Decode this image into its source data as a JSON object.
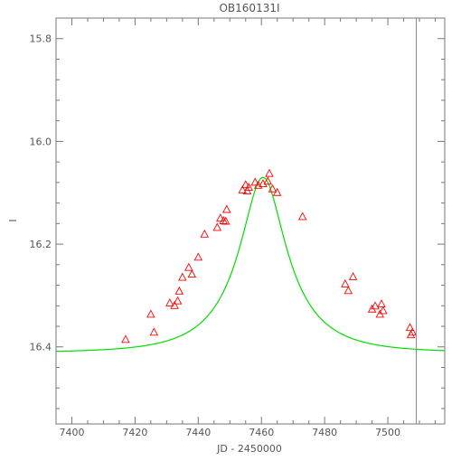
{
  "chart_data": {
    "type": "scatter",
    "title": "OB160131I",
    "xlabel": "JD - 2450000",
    "ylabel": "I",
    "xlim": [
      7395,
      7518
    ],
    "ylim": [
      16.55,
      15.76
    ],
    "y_inverted": true,
    "grid": false,
    "x_ticks": [
      7400,
      7420,
      7440,
      7460,
      7480,
      7500
    ],
    "x_tick_labels": [
      "7400",
      "7420",
      "7440",
      "7460",
      "7480",
      "7500"
    ],
    "y_ticks": [
      15.8,
      16.0,
      16.2,
      16.4
    ],
    "y_tick_labels": [
      "15.8",
      "16.0",
      "16.2",
      "16.4"
    ],
    "vertical_line_x": 7509,
    "series": [
      {
        "marker": "triangle",
        "color": "#ff0000",
        "points": [
          {
            "x": 7417,
            "y": 16.386
          },
          {
            "x": 7425,
            "y": 16.337
          },
          {
            "x": 7426,
            "y": 16.372
          },
          {
            "x": 7431,
            "y": 16.315
          },
          {
            "x": 7432.5,
            "y": 16.32
          },
          {
            "x": 7433.5,
            "y": 16.311
          },
          {
            "x": 7434,
            "y": 16.292
          },
          {
            "x": 7435,
            "y": 16.265
          },
          {
            "x": 7437,
            "y": 16.246
          },
          {
            "x": 7438,
            "y": 16.259
          },
          {
            "x": 7440,
            "y": 16.226
          },
          {
            "x": 7442,
            "y": 16.181
          },
          {
            "x": 7446,
            "y": 16.168
          },
          {
            "x": 7447,
            "y": 16.15
          },
          {
            "x": 7448,
            "y": 16.155
          },
          {
            "x": 7448.7,
            "y": 16.156
          },
          {
            "x": 7449,
            "y": 16.133
          },
          {
            "x": 7454,
            "y": 16.095
          },
          {
            "x": 7455,
            "y": 16.085
          },
          {
            "x": 7455.5,
            "y": 16.097
          },
          {
            "x": 7456,
            "y": 16.09
          },
          {
            "x": 7458,
            "y": 16.08
          },
          {
            "x": 7459,
            "y": 16.086
          },
          {
            "x": 7460.5,
            "y": 16.083
          },
          {
            "x": 7462,
            "y": 16.078
          },
          {
            "x": 7462.5,
            "y": 16.063
          },
          {
            "x": 7463.5,
            "y": 16.093
          },
          {
            "x": 7465,
            "y": 16.1
          },
          {
            "x": 7473,
            "y": 16.147
          },
          {
            "x": 7486.5,
            "y": 16.278
          },
          {
            "x": 7487.5,
            "y": 16.291
          },
          {
            "x": 7489,
            "y": 16.264
          },
          {
            "x": 7495,
            "y": 16.327
          },
          {
            "x": 7496,
            "y": 16.321
          },
          {
            "x": 7497.5,
            "y": 16.337
          },
          {
            "x": 7498,
            "y": 16.317
          },
          {
            "x": 7498.5,
            "y": 16.33
          },
          {
            "x": 7507,
            "y": 16.363
          },
          {
            "x": 7507.3,
            "y": 16.377
          },
          {
            "x": 7507.8,
            "y": 16.372
          }
        ]
      }
    ],
    "model_curve": {
      "color": "#00dd00",
      "t0": 7460.5,
      "tE": 20.5,
      "u0": 0.36,
      "base": 16.411,
      "amp": 0.341
    }
  }
}
